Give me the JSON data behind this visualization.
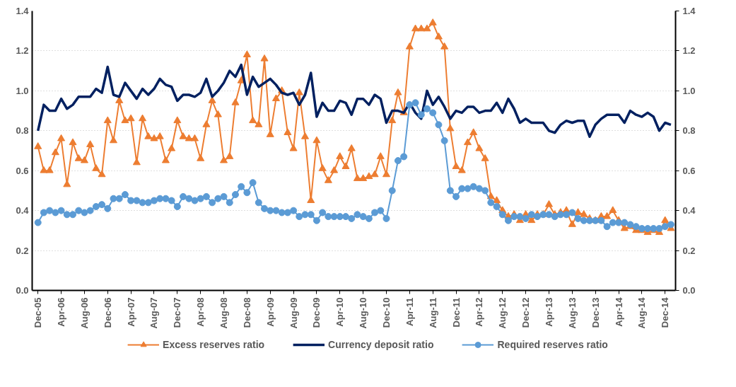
{
  "chart_data": {
    "type": "line",
    "categories": [
      "Dec-05",
      null,
      null,
      null,
      "Apr-06",
      null,
      null,
      null,
      "Aug-06",
      null,
      null,
      null,
      "Dec-06",
      null,
      null,
      null,
      "Apr-07",
      null,
      null,
      null,
      "Aug-07",
      null,
      null,
      null,
      "Dec-07",
      null,
      null,
      null,
      "Apr-08",
      null,
      null,
      null,
      "Aug-08",
      null,
      null,
      null,
      "Dec-08",
      null,
      null,
      null,
      "Apr-09",
      null,
      null,
      null,
      "Aug-09",
      null,
      null,
      null,
      "Dec-09",
      null,
      null,
      null,
      "Apr-10",
      null,
      null,
      null,
      "Aug-10",
      null,
      null,
      null,
      "Dec-10",
      null,
      null,
      null,
      "Apr-11",
      null,
      null,
      null,
      "Aug-11",
      null,
      null,
      null,
      "Dec-11",
      null,
      null,
      null,
      "Apr-12",
      null,
      null,
      null,
      "Aug-12",
      null,
      null,
      null,
      "Dec-12",
      null,
      null,
      null,
      "Apr-13",
      null,
      null,
      null,
      "Aug-13",
      null,
      null,
      null,
      "Dec-13",
      null,
      null,
      null,
      "Apr-14",
      null,
      null,
      null,
      "Aug-14",
      null,
      null,
      null,
      "Dec-14",
      null
    ],
    "series": [
      {
        "name": "Excess reserves ratio",
        "color": "#ed7d31",
        "marker": "triangle",
        "values": [
          0.72,
          0.6,
          0.6,
          0.69,
          0.76,
          0.53,
          0.74,
          0.66,
          0.65,
          0.73,
          0.61,
          0.58,
          0.85,
          0.75,
          0.95,
          0.85,
          0.86,
          0.64,
          0.86,
          0.77,
          0.76,
          0.77,
          0.65,
          0.71,
          0.85,
          0.77,
          0.76,
          0.76,
          0.66,
          0.83,
          0.95,
          0.88,
          0.65,
          0.67,
          0.94,
          1.05,
          1.18,
          0.85,
          0.83,
          1.16,
          0.78,
          0.96,
          1.0,
          0.79,
          0.71,
          0.99,
          0.77,
          0.45,
          0.75,
          0.61,
          0.55,
          0.6,
          0.67,
          0.62,
          0.71,
          0.56,
          0.56,
          0.57,
          0.58,
          0.67,
          0.58,
          0.85,
          0.99,
          0.89,
          1.22,
          1.31,
          1.31,
          1.31,
          1.34,
          1.27,
          1.22,
          0.81,
          0.62,
          0.6,
          0.74,
          0.79,
          0.71,
          0.66,
          0.47,
          0.45,
          0.4,
          0.37,
          0.38,
          0.35,
          0.38,
          0.35,
          0.38,
          0.38,
          0.43,
          0.38,
          0.39,
          0.4,
          0.33,
          0.39,
          0.38,
          0.36,
          0.35,
          0.37,
          0.37,
          0.4,
          0.35,
          0.31,
          0.32,
          0.3,
          0.3,
          0.29,
          0.3,
          0.29,
          0.35,
          0.31
        ]
      },
      {
        "name": "Currency deposit ratio",
        "color": "#002060",
        "marker": "none",
        "values": [
          0.8,
          0.93,
          0.9,
          0.9,
          0.96,
          0.91,
          0.93,
          0.97,
          0.97,
          0.97,
          1.01,
          0.99,
          1.12,
          0.98,
          0.97,
          1.04,
          1.0,
          0.96,
          1.01,
          0.98,
          1.01,
          1.06,
          1.03,
          1.02,
          0.95,
          0.98,
          0.98,
          0.97,
          0.99,
          1.06,
          0.97,
          1.0,
          1.04,
          1.1,
          1.07,
          1.13,
          0.98,
          1.07,
          1.02,
          1.04,
          1.06,
          1.03,
          0.99,
          0.98,
          0.99,
          0.93,
          0.98,
          1.09,
          0.87,
          0.94,
          0.9,
          0.9,
          0.95,
          0.94,
          0.88,
          0.96,
          0.96,
          0.93,
          0.98,
          0.96,
          0.84,
          0.9,
          0.9,
          0.89,
          0.94,
          0.89,
          0.86,
          1.0,
          0.93,
          0.97,
          0.92,
          0.86,
          0.9,
          0.89,
          0.92,
          0.92,
          0.89,
          0.9,
          0.9,
          0.94,
          0.89,
          0.96,
          0.91,
          0.84,
          0.86,
          0.84,
          0.84,
          0.84,
          0.8,
          0.79,
          0.83,
          0.85,
          0.84,
          0.85,
          0.85,
          0.77,
          0.83,
          0.86,
          0.88,
          0.88,
          0.88,
          0.84,
          0.9,
          0.88,
          0.87,
          0.89,
          0.87,
          0.8,
          0.84,
          0.83
        ]
      },
      {
        "name": "Required reserves ratio",
        "color": "#5b9bd5",
        "marker": "circle",
        "values": [
          0.34,
          0.39,
          0.4,
          0.39,
          0.4,
          0.38,
          0.38,
          0.4,
          0.39,
          0.4,
          0.42,
          0.43,
          0.41,
          0.46,
          0.46,
          0.48,
          0.45,
          0.45,
          0.44,
          0.44,
          0.45,
          0.46,
          0.46,
          0.45,
          0.42,
          0.47,
          0.46,
          0.45,
          0.46,
          0.47,
          0.44,
          0.46,
          0.47,
          0.44,
          0.48,
          0.52,
          0.49,
          0.54,
          0.44,
          0.41,
          0.4,
          0.4,
          0.39,
          0.39,
          0.4,
          0.37,
          0.38,
          0.38,
          0.35,
          0.39,
          0.37,
          0.37,
          0.37,
          0.37,
          0.36,
          0.38,
          0.37,
          0.36,
          0.39,
          0.4,
          0.36,
          0.5,
          0.65,
          0.67,
          0.93,
          0.94,
          0.88,
          0.91,
          0.89,
          0.83,
          0.75,
          0.5,
          0.47,
          0.51,
          0.51,
          0.52,
          0.51,
          0.5,
          0.44,
          0.42,
          0.38,
          0.35,
          0.37,
          0.37,
          0.36,
          0.38,
          0.37,
          0.38,
          0.38,
          0.37,
          0.38,
          0.38,
          0.39,
          0.36,
          0.35,
          0.35,
          0.35,
          0.35,
          0.32,
          0.34,
          0.34,
          0.34,
          0.33,
          0.32,
          0.31,
          0.31,
          0.31,
          0.31,
          0.32,
          0.33
        ]
      }
    ],
    "ylim": [
      0,
      1.4
    ],
    "yticks": [
      {
        "value": 0,
        "label": "0.0"
      },
      {
        "value": 0.2,
        "label": "0.2"
      },
      {
        "value": 0.4,
        "label": "0.4"
      },
      {
        "value": 0.6,
        "label": "0.6"
      },
      {
        "value": 0.8,
        "label": "0.8"
      },
      {
        "value": 1.0,
        "label": "1.0"
      },
      {
        "value": 1.2,
        "label": "1.2"
      },
      {
        "value": 1.4,
        "label": "1.4"
      }
    ],
    "y2lim": [
      0,
      1.4
    ],
    "y2ticks": [
      {
        "value": 0,
        "label": "0.0"
      },
      {
        "value": 0.2,
        "label": "0.2"
      },
      {
        "value": 0.4,
        "label": "0.4"
      },
      {
        "value": 0.6,
        "label": "0.6"
      },
      {
        "value": 0.8,
        "label": "0.8"
      },
      {
        "value": 1.0,
        "label": "1.0"
      },
      {
        "value": 1.2,
        "label": "1.2"
      },
      {
        "value": 1.4,
        "label": "1.4"
      }
    ],
    "grid": "y",
    "legend": "bottom",
    "line_style": "solid"
  }
}
